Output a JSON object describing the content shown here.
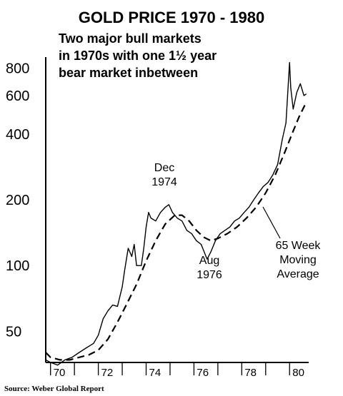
{
  "chart_data": {
    "type": "line",
    "title": "GOLD PRICE 1970 - 1980",
    "subtitle_lines": [
      "Two major bull markets",
      "in 1970s with one 1½ year",
      "bear market inbetween"
    ],
    "xlabel": "",
    "ylabel": "",
    "yscale": "log",
    "ylim": [
      36,
      900
    ],
    "xlim": [
      1969.8,
      1980.8
    ],
    "y_ticks": [
      {
        "value": 50,
        "label": "50"
      },
      {
        "value": 100,
        "label": "100"
      },
      {
        "value": 200,
        "label": "200"
      },
      {
        "value": 400,
        "label": "400"
      },
      {
        "value": 600,
        "label": "600"
      },
      {
        "value": 800,
        "label": "800"
      }
    ],
    "x_ticks": [
      {
        "value": 1970,
        "label": "70"
      },
      {
        "value": 1972,
        "label": "72"
      },
      {
        "value": 1974,
        "label": "74"
      },
      {
        "value": 1976,
        "label": "76"
      },
      {
        "value": 1978,
        "label": "78"
      },
      {
        "value": 1980,
        "label": "80"
      }
    ],
    "grid": false,
    "legend": "none",
    "series": [
      {
        "style": "solid",
        "x": [
          1969.8,
          1970.0,
          1970.3,
          1970.6,
          1970.9,
          1971.2,
          1971.5,
          1971.8,
          1972.0,
          1972.2,
          1972.4,
          1972.6,
          1972.8,
          1973.0,
          1973.1,
          1973.25,
          1973.4,
          1973.5,
          1973.6,
          1973.8,
          1973.9,
          1974.0,
          1974.1,
          1974.2,
          1974.4,
          1974.6,
          1974.8,
          1974.95,
          1975.1,
          1975.3,
          1975.5,
          1975.7,
          1975.9,
          1976.1,
          1976.3,
          1976.55,
          1976.7,
          1976.9,
          1977.1,
          1977.3,
          1977.5,
          1977.7,
          1977.9,
          1978.1,
          1978.3,
          1978.5,
          1978.7,
          1978.9,
          1979.1,
          1979.3,
          1979.5,
          1979.7,
          1979.85,
          1980.0,
          1980.05,
          1980.15,
          1980.3,
          1980.45,
          1980.6,
          1980.7
        ],
        "values": [
          37,
          36,
          35,
          37,
          38,
          40,
          42,
          44,
          48,
          57,
          62,
          66,
          65,
          80,
          95,
          120,
          110,
          125,
          100,
          100,
          120,
          150,
          175,
          165,
          160,
          175,
          185,
          190,
          175,
          165,
          160,
          145,
          140,
          130,
          125,
          107,
          115,
          130,
          140,
          145,
          150,
          160,
          165,
          175,
          185,
          200,
          215,
          230,
          240,
          260,
          290,
          380,
          450,
          850,
          650,
          520,
          620,
          680,
          600,
          610
        ]
      },
      {
        "name": "65 Week Moving Average",
        "style": "dashed",
        "x": [
          1969.8,
          1970.0,
          1970.4,
          1970.8,
          1971.2,
          1971.6,
          1972.0,
          1972.4,
          1972.8,
          1973.2,
          1973.6,
          1974.0,
          1974.4,
          1974.8,
          1975.2,
          1975.5,
          1975.8,
          1976.1,
          1976.4,
          1976.7,
          1977.0,
          1977.4,
          1977.8,
          1978.2,
          1978.6,
          1979.0,
          1979.4,
          1979.8,
          1980.1,
          1980.4,
          1980.7
        ],
        "values": [
          40,
          38,
          37,
          37,
          38,
          39,
          41,
          46,
          55,
          67,
          82,
          105,
          130,
          155,
          170,
          170,
          160,
          145,
          135,
          130,
          133,
          140,
          150,
          165,
          185,
          215,
          260,
          330,
          400,
          480,
          560
        ]
      }
    ],
    "annotations": [
      {
        "lines": [
          "Dec",
          "1974"
        ]
      },
      {
        "lines": [
          "Aug",
          "1976"
        ]
      },
      {
        "lines": [
          "65 Week",
          "Moving",
          "Average"
        ]
      }
    ],
    "source": "Source: Weber Global Report"
  }
}
